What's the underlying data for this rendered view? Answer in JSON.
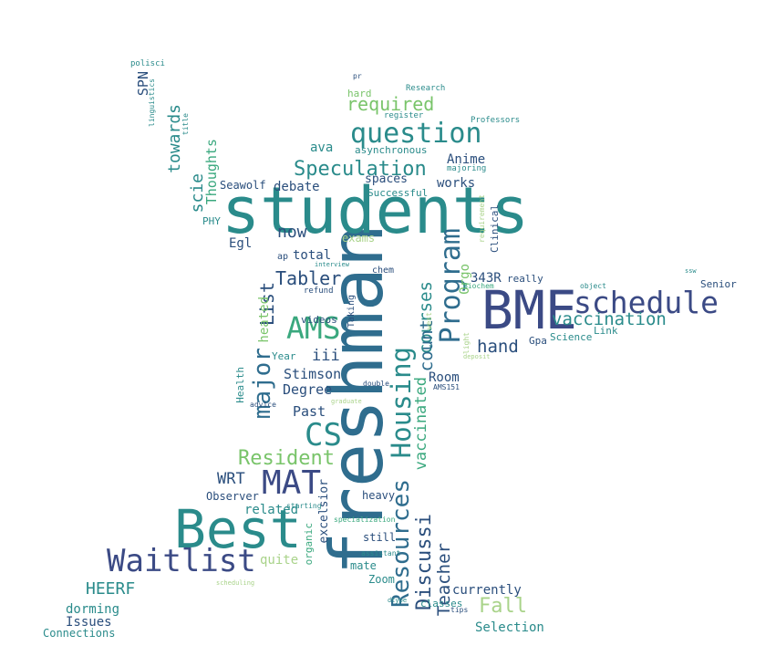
{
  "words": [
    {
      "text": "freshman",
      "color": "#2f6d8e"
    },
    {
      "text": "students",
      "color": "#2a8b8b"
    },
    {
      "text": "BME",
      "color": "#3b4a85"
    },
    {
      "text": "Best",
      "color": "#2a8b8b"
    },
    {
      "text": "schedule",
      "color": "#3b4a85"
    },
    {
      "text": "question",
      "color": "#2a8b8b"
    },
    {
      "text": "Waitlist",
      "color": "#3b4a85"
    },
    {
      "text": "MAT",
      "color": "#3b4a85"
    },
    {
      "text": "AMS",
      "color": "#3aa87e"
    },
    {
      "text": "CS",
      "color": "#2a8b8b"
    },
    {
      "text": "Program",
      "color": "#2f6d8e"
    },
    {
      "text": "Housing",
      "color": "#2a8b8b"
    },
    {
      "text": "major",
      "color": "#2f6d8e"
    },
    {
      "text": "Resources",
      "color": "#2f6d8e"
    },
    {
      "text": "Discussi",
      "color": "#2a4e7c"
    },
    {
      "text": "Speculation",
      "color": "#2a8b8b"
    },
    {
      "text": "Resident",
      "color": "#79c46a"
    },
    {
      "text": "Fall",
      "color": "#a9d38a"
    },
    {
      "text": "vaccination",
      "color": "#2a8b8b"
    },
    {
      "text": "Teacher",
      "color": "#2a4e7c"
    },
    {
      "text": "List",
      "color": "#2a4e7c"
    },
    {
      "text": "Tabler",
      "color": "#2a4e7c"
    },
    {
      "text": "required",
      "color": "#79c46a"
    },
    {
      "text": "courses",
      "color": "#2a8b8b"
    },
    {
      "text": "count",
      "color": "#2f6d8e"
    },
    {
      "text": "vaccinated",
      "color": "#3aa87e"
    },
    {
      "text": "hand",
      "color": "#2a4e7c"
    },
    {
      "text": "HEERF",
      "color": "#2a8b8b"
    },
    {
      "text": "towards",
      "color": "#2a8b8b"
    },
    {
      "text": "scie",
      "color": "#2a8b8b"
    },
    {
      "text": "now",
      "color": "#2a4e7c"
    },
    {
      "text": "WRT",
      "color": "#2a4e7c"
    },
    {
      "text": "iii",
      "color": "#2a4e7c"
    },
    {
      "text": "Stimson",
      "color": "#2a4e7c"
    },
    {
      "text": "Degree",
      "color": "#2a4e7c"
    },
    {
      "text": "Past",
      "color": "#2a4e7c"
    },
    {
      "text": "Room",
      "color": "#2a4e7c"
    },
    {
      "text": "343R",
      "color": "#2a4e7c"
    },
    {
      "text": "Orgo",
      "color": "#79c46a"
    },
    {
      "text": "Anime",
      "color": "#2a4e7c"
    },
    {
      "text": "works",
      "color": "#2a4e7c"
    },
    {
      "text": "spaces",
      "color": "#2a4e7c"
    },
    {
      "text": "debate",
      "color": "#2a4e7c"
    },
    {
      "text": "ava",
      "color": "#2a8b8b"
    },
    {
      "text": "Egl",
      "color": "#2a4e7c"
    },
    {
      "text": "total",
      "color": "#2a4e7c"
    },
    {
      "text": "exams",
      "color": "#a9d38a"
    },
    {
      "text": "related",
      "color": "#2a8b8b"
    },
    {
      "text": "quite",
      "color": "#a9d38a"
    },
    {
      "text": "currently",
      "color": "#2a4e7c"
    },
    {
      "text": "Selection",
      "color": "#2a8b8b"
    },
    {
      "text": "dorming",
      "color": "#2a8b8b"
    },
    {
      "text": "Issues",
      "color": "#2a4e7c"
    },
    {
      "text": "Connections",
      "color": "#2a8b8b"
    },
    {
      "text": "Observer",
      "color": "#2a4e7c"
    },
    {
      "text": "heavy",
      "color": "#2a4e7c"
    },
    {
      "text": "still",
      "color": "#2a4e7c"
    },
    {
      "text": "mate",
      "color": "#2a8b8b"
    },
    {
      "text": "Zoom",
      "color": "#2a8b8b"
    },
    {
      "text": "classes",
      "color": "#2a8b8b"
    },
    {
      "text": "excelsior",
      "color": "#2a4e7c"
    },
    {
      "text": "organic",
      "color": "#3aa87e"
    },
    {
      "text": "heated",
      "color": "#79c46a"
    },
    {
      "text": "videos",
      "color": "#2a4e7c"
    },
    {
      "text": "Year",
      "color": "#2a8b8b"
    },
    {
      "text": "Health",
      "color": "#2a8b8b"
    },
    {
      "text": "Thoughts",
      "color": "#3aa87e"
    },
    {
      "text": "Seawolf",
      "color": "#2a4e7c"
    },
    {
      "text": "PHY",
      "color": "#2a8b8b"
    },
    {
      "text": "SPN",
      "color": "#2a4e7c"
    },
    {
      "text": "polisci",
      "color": "#2a8b8b"
    },
    {
      "text": "linguistics",
      "color": "#2a8b8b"
    },
    {
      "text": "title",
      "color": "#2a8b8b"
    },
    {
      "text": "pr",
      "color": "#2a4e7c"
    },
    {
      "text": "Research",
      "color": "#2a8b8b"
    },
    {
      "text": "hard",
      "color": "#79c46a"
    },
    {
      "text": "register",
      "color": "#2a8b8b"
    },
    {
      "text": "Professors",
      "color": "#2a8b8b"
    },
    {
      "text": "asynchronous",
      "color": "#2a8b8b"
    },
    {
      "text": "majoring",
      "color": "#2a8b8b"
    },
    {
      "text": "Successful",
      "color": "#2a8b8b"
    },
    {
      "text": "Clinical",
      "color": "#2a4e7c"
    },
    {
      "text": "requirement",
      "color": "#a9d38a"
    },
    {
      "text": "chem",
      "color": "#2a4e7c"
    },
    {
      "text": "really",
      "color": "#2a4e7c"
    },
    {
      "text": "Biochem",
      "color": "#3aa87e"
    },
    {
      "text": "object",
      "color": "#2a8b8b"
    },
    {
      "text": "ssw",
      "color": "#2a8b8b"
    },
    {
      "text": "Senior",
      "color": "#2a4e7c"
    },
    {
      "text": "Link",
      "color": "#2a8b8b"
    },
    {
      "text": "Gpa",
      "color": "#2a4e7c"
    },
    {
      "text": "Science",
      "color": "#2a8b8b"
    },
    {
      "text": "light",
      "color": "#a9d38a"
    },
    {
      "text": "west",
      "color": "#a9d38a"
    },
    {
      "text": "deposit",
      "color": "#a9d38a"
    },
    {
      "text": "AMS151",
      "color": "#2a4e7c"
    },
    {
      "text": "double",
      "color": "#2a4e7c"
    },
    {
      "text": "graduate",
      "color": "#a9d38a"
    },
    {
      "text": "Taking",
      "color": "#2a4e7c"
    },
    {
      "text": "refund",
      "color": "#2a4e7c"
    },
    {
      "text": "interview",
      "color": "#2a8b8b"
    },
    {
      "text": "ap",
      "color": "#2a4e7c"
    },
    {
      "text": "advice",
      "color": "#2a4e7c"
    },
    {
      "text": "starting",
      "color": "#2a8b8b"
    },
    {
      "text": "specialization",
      "color": "#3aa87e"
    },
    {
      "text": "assistant",
      "color": "#2a8b8b"
    },
    {
      "text": "tips",
      "color": "#2a4e7c"
    },
    {
      "text": "dtype",
      "color": "#2a8b8b"
    },
    {
      "text": "scheduling",
      "color": "#a9d38a"
    }
  ]
}
